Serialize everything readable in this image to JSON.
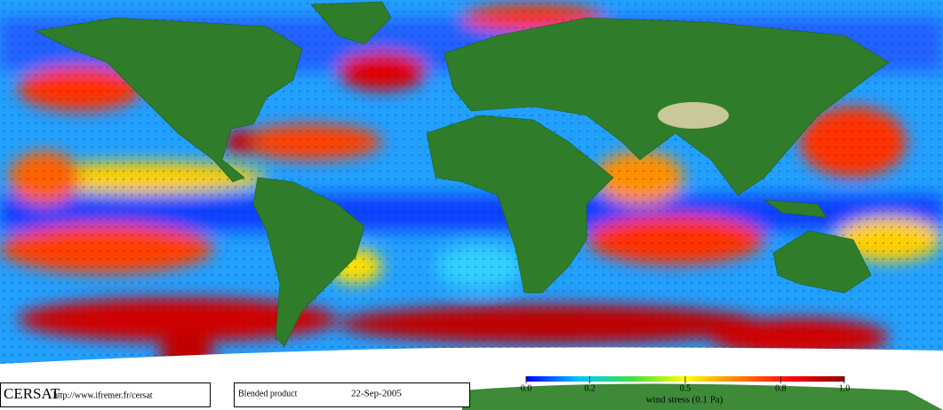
{
  "footer": {
    "logo": "CERSAT",
    "url": "http://www.ifremer.fr/cersat",
    "product": "Blended product",
    "date": "22-Sep-2005"
  },
  "colorbar": {
    "label": "wind stress (0.1 Pa)",
    "lim": [
      0,
      1
    ],
    "ticks": [
      {
        "value": 0,
        "label": "0.0"
      },
      {
        "value": 0.2,
        "label": "0.2"
      },
      {
        "value": 0.5,
        "label": "0.5"
      },
      {
        "value": 0.8,
        "label": "0.8"
      },
      {
        "value": 1,
        "label": "1.0"
      }
    ],
    "colors": [
      "#0000ff",
      "#00c8ff",
      "#40e040",
      "#ffff00",
      "#ff8000",
      "#ff0000",
      "#900000"
    ]
  }
}
